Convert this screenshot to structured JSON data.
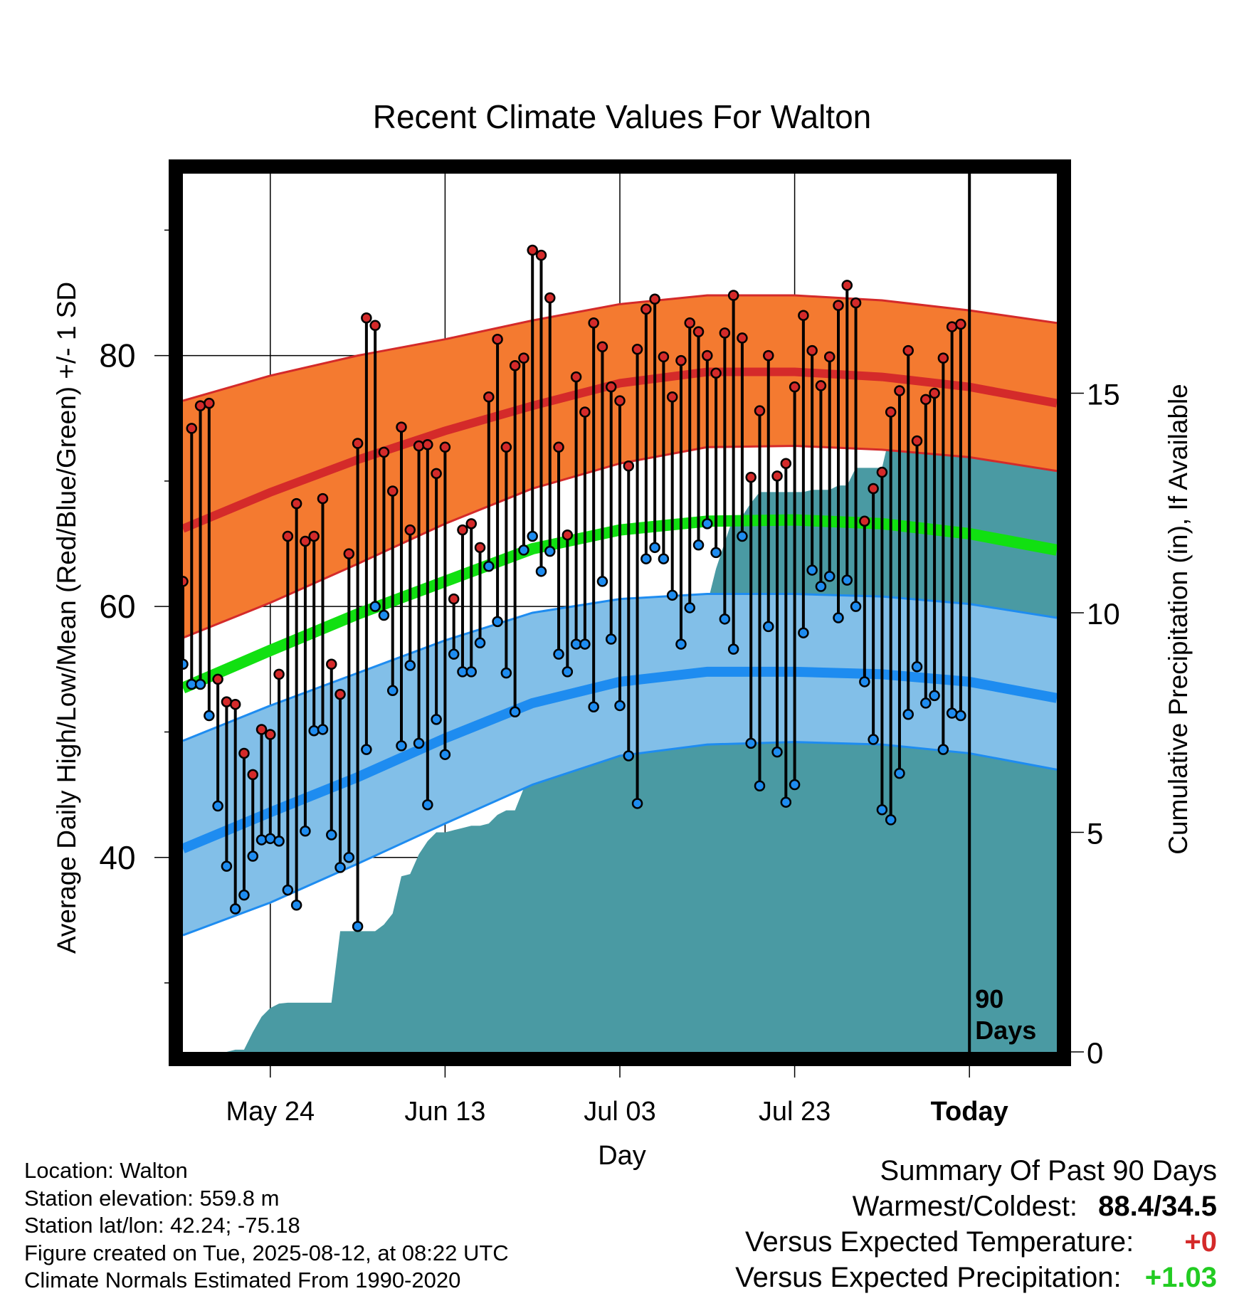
{
  "chart_data": {
    "type": "line",
    "title": "Recent Climate Values For Walton",
    "xlabel": "Day",
    "ylabel_left": "Average Daily High/Low/Mean (Red/Blue/Green) +/- 1 SD",
    "ylabel_right": "Cumulative Precipitation (in), If Available",
    "x_tick_labels": [
      "May 24",
      "Jun 13",
      "Jul 03",
      "Jul 23",
      "Today"
    ],
    "x_tick_days": [
      10,
      30,
      50,
      70,
      90
    ],
    "x_range": [
      0,
      100
    ],
    "y_left_range": [
      24.5,
      94.5
    ],
    "y_left_ticks": [
      40,
      60,
      80
    ],
    "y_right_range": [
      0,
      20
    ],
    "y_right_ticks": [
      0,
      5,
      10,
      15
    ],
    "today_marker_label": "90\nDays",
    "colors": {
      "high_band": "#f47a30",
      "high_mean": "#d42a2a",
      "low_band": "#82bfe8",
      "low_mean": "#1e8cf0",
      "mean": "#11e011",
      "precip": "#4a9aa3",
      "high_point": "#d42a2a",
      "low_point": "#1e8cf0"
    },
    "normals": {
      "days": [
        0,
        10,
        20,
        30,
        40,
        50,
        60,
        70,
        80,
        90,
        100
      ],
      "high_mean": [
        66.2,
        69.1,
        71.7,
        74.0,
        76.0,
        77.8,
        78.7,
        78.7,
        78.3,
        77.5,
        76.2
      ],
      "high_plus_sd": [
        76.4,
        78.4,
        80.0,
        81.3,
        82.8,
        84.1,
        84.8,
        84.8,
        84.4,
        83.6,
        82.6
      ],
      "high_minus_sd": [
        57.5,
        60.3,
        63.4,
        66.6,
        69.4,
        71.4,
        72.7,
        72.8,
        72.5,
        71.9,
        70.8
      ],
      "low_mean": [
        40.7,
        43.6,
        46.4,
        49.5,
        52.3,
        54.0,
        54.8,
        54.8,
        54.6,
        54.0,
        52.7
      ],
      "low_plus_sd": [
        49.3,
        52.1,
        54.7,
        57.3,
        59.5,
        60.6,
        61.0,
        61.0,
        60.8,
        60.2,
        59.1
      ],
      "low_minus_sd": [
        33.8,
        36.4,
        39.5,
        42.7,
        45.8,
        48.1,
        49.0,
        49.2,
        49.0,
        48.3,
        47.0
      ],
      "mean": [
        53.5,
        56.5,
        59.4,
        62.0,
        64.6,
        66.1,
        66.8,
        66.9,
        66.6,
        65.8,
        64.5
      ]
    },
    "daily_high": [
      62.0,
      74.2,
      76.0,
      76.2,
      54.2,
      52.4,
      52.2,
      48.3,
      46.6,
      50.2,
      49.8,
      54.6,
      65.6,
      68.2,
      65.2,
      65.6,
      68.6,
      55.4,
      53.0,
      64.2,
      73.0,
      83.0,
      82.4,
      72.3,
      69.2,
      74.3,
      66.1,
      72.8,
      72.9,
      70.6,
      72.7,
      60.6,
      66.1,
      66.6,
      64.7,
      76.7,
      81.3,
      72.7,
      79.2,
      79.8,
      88.4,
      88.0,
      84.6,
      72.7,
      65.7,
      78.3,
      75.5,
      82.6,
      80.7,
      77.5,
      76.4,
      71.2,
      80.5,
      83.7,
      84.5,
      79.9,
      76.7,
      79.6,
      82.6,
      81.9,
      80.0,
      78.6,
      81.8,
      84.8,
      81.4,
      70.3,
      75.6,
      80.0,
      70.4,
      71.4,
      77.5,
      83.2,
      80.4,
      77.6,
      79.9,
      84.0,
      85.6,
      84.2,
      66.8,
      69.4,
      70.7,
      75.5,
      77.2,
      80.4,
      73.2,
      76.5,
      77.0,
      79.8,
      82.3,
      82.5
    ],
    "daily_low": [
      55.4,
      53.8,
      53.8,
      51.3,
      44.1,
      39.3,
      35.9,
      37.0,
      40.1,
      41.4,
      41.5,
      41.3,
      37.4,
      36.2,
      42.1,
      50.1,
      50.2,
      41.8,
      39.2,
      40.0,
      34.5,
      48.6,
      60.0,
      59.3,
      53.3,
      48.9,
      55.3,
      49.1,
      44.2,
      51.0,
      48.2,
      56.2,
      54.8,
      54.8,
      57.1,
      63.2,
      58.8,
      54.7,
      51.6,
      64.5,
      65.6,
      62.8,
      64.4,
      56.2,
      54.8,
      57.0,
      57.0,
      52.0,
      62.0,
      57.4,
      52.1,
      48.1,
      44.3,
      63.8,
      64.7,
      63.8,
      60.9,
      57.0,
      59.9,
      64.9,
      66.6,
      64.3,
      59.0,
      56.6,
      65.6,
      49.1,
      45.7,
      58.4,
      48.4,
      44.4,
      45.8,
      57.9,
      62.9,
      61.6,
      62.4,
      59.1,
      62.1,
      60.0,
      54.0,
      49.4,
      43.8,
      43.0,
      46.7,
      51.4,
      55.2,
      52.3,
      52.9,
      48.6,
      51.5,
      51.3
    ],
    "cumulative_precip": [
      0.0,
      0.0,
      0.0,
      0.0,
      0.0,
      0.0,
      0.05,
      0.05,
      0.45,
      0.8,
      1.0,
      1.1,
      1.12,
      1.12,
      1.12,
      1.12,
      1.12,
      1.12,
      2.75,
      2.75,
      2.75,
      2.75,
      2.75,
      2.9,
      3.15,
      4.0,
      4.05,
      4.5,
      4.8,
      5.0,
      5.0,
      5.05,
      5.1,
      5.15,
      5.15,
      5.2,
      5.4,
      5.5,
      5.5,
      6.0,
      8.8,
      8.8,
      8.8,
      8.8,
      8.85,
      8.95,
      8.95,
      8.95,
      9.0,
      9.4,
      9.4,
      9.4,
      9.4,
      9.4,
      9.4,
      9.4,
      9.4,
      9.5,
      9.6,
      9.6,
      10.2,
      11.0,
      11.6,
      12.2,
      12.2,
      12.5,
      12.75,
      12.75,
      12.75,
      12.75,
      12.75,
      12.75,
      12.8,
      12.8,
      12.8,
      12.9,
      12.9,
      13.3,
      13.3,
      13.3,
      13.3,
      14.15,
      14.15,
      14.15,
      14.15,
      14.15,
      14.15,
      14.6,
      14.6,
      14.6,
      14.6,
      14.6,
      14.6,
      14.6,
      14.6,
      14.6,
      14.6,
      14.6,
      14.6,
      14.6,
      14.6
    ]
  },
  "footer": {
    "location": "Location: Walton",
    "elevation": "Station elevation: 559.8 m",
    "latlon": "Station lat/lon: 42.24; -75.18",
    "created": "Figure created on Tue, 2025-08-12, at 08:22 UTC",
    "normals": "Climate Normals Estimated From 1990-2020"
  },
  "summary": {
    "title": "Summary Of Past 90 Days",
    "warm_cold_label": "Warmest/Coldest:",
    "warm_cold_value": "88.4/34.5",
    "temp_label": "Versus Expected Temperature:",
    "temp_value": "+0",
    "temp_color": "#d42a2a",
    "precip_label": "Versus Expected Precipitation:",
    "precip_value": "+1.03",
    "precip_color": "#22cc22"
  }
}
